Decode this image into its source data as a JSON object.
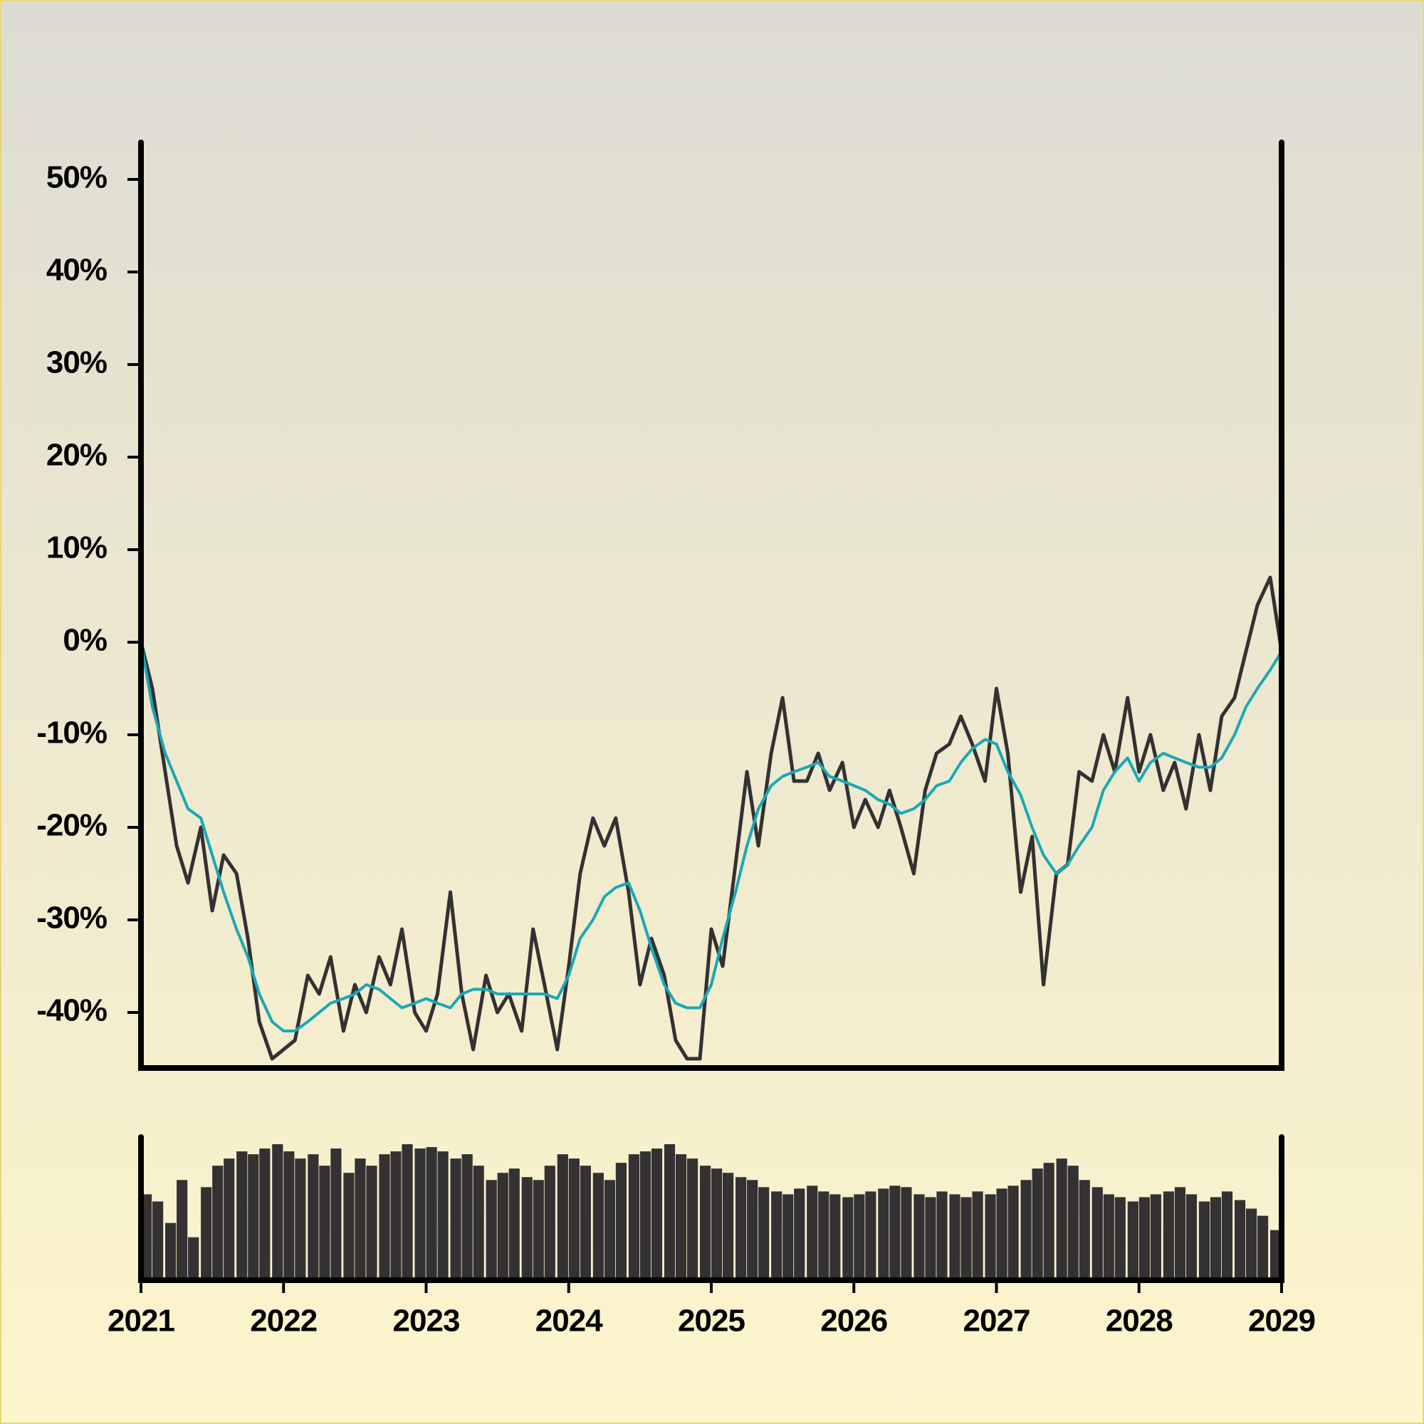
{
  "chart_data": [
    {
      "type": "line",
      "x": [
        2021,
        2021.08,
        2021.17,
        2021.25,
        2021.33,
        2021.42,
        2021.5,
        2021.58,
        2021.67,
        2021.75,
        2021.83,
        2021.92,
        2022,
        2022.08,
        2022.17,
        2022.25,
        2022.33,
        2022.42,
        2022.5,
        2022.58,
        2022.67,
        2022.75,
        2022.83,
        2022.92,
        2023,
        2023.08,
        2023.17,
        2023.25,
        2023.33,
        2023.42,
        2023.5,
        2023.58,
        2023.67,
        2023.75,
        2023.83,
        2023.92,
        2024,
        2024.08,
        2024.17,
        2024.25,
        2024.33,
        2024.42,
        2024.5,
        2024.58,
        2024.67,
        2024.75,
        2024.83,
        2024.92,
        2025,
        2025.08,
        2025.17,
        2025.25,
        2025.33,
        2025.42,
        2025.5,
        2025.58,
        2025.67,
        2025.75,
        2025.83,
        2025.92,
        2026,
        2026.08,
        2026.17,
        2026.25,
        2026.33,
        2026.42,
        2026.5,
        2026.58,
        2026.67,
        2026.75,
        2026.83,
        2026.92,
        2027,
        2027.08,
        2027.17,
        2027.25,
        2027.33,
        2027.42,
        2027.5,
        2027.58,
        2027.67,
        2027.75,
        2027.83,
        2027.92,
        2028,
        2028.08,
        2028.17,
        2028.25,
        2028.33,
        2028.42,
        2028.5,
        2028.58,
        2028.67,
        2028.75,
        2028.83,
        2028.92,
        2029
      ],
      "series": [
        {
          "color": "#333132",
          "values": [
            0,
            -5,
            -14,
            -22,
            -26,
            -20,
            -29,
            -23,
            -25,
            -32,
            -41,
            -45,
            -44,
            -43,
            -36,
            -38,
            -34,
            -42,
            -37,
            -40,
            -34,
            -37,
            -31,
            -40,
            -42,
            -38,
            -27,
            -38,
            -44,
            -36,
            -40,
            -38,
            -42,
            -31,
            -37,
            -44,
            -35,
            -25,
            -19,
            -22,
            -19,
            -27,
            -37,
            -32,
            -36,
            -43,
            -45,
            -45,
            -31,
            -35,
            -24,
            -14,
            -22,
            -12,
            -6,
            -15,
            -15,
            -12,
            -16,
            -13,
            -20,
            -17,
            -20,
            -16,
            -20,
            -25,
            -16,
            -12,
            -11,
            -8,
            -11,
            -15,
            -5,
            -12,
            -27,
            -21,
            -37,
            -25,
            -24,
            -14,
            -15,
            -10,
            -14,
            -6,
            -14,
            -10,
            -16,
            -13,
            -18,
            -10,
            -16,
            -8,
            -6,
            -1,
            4,
            7,
            -1
          ]
        },
        {
          "color": "#1aa8b5",
          "values": [
            0,
            -7,
            -12,
            -15,
            -18,
            -19,
            -23,
            -27,
            -31,
            -34,
            -38,
            -41,
            -42,
            -42,
            -41,
            -40,
            -39,
            -38.5,
            -38,
            -37,
            -37.5,
            -38.5,
            -39.5,
            -39,
            -38.5,
            -39,
            -39.5,
            -38,
            -37.5,
            -37.5,
            -38,
            -38,
            -38,
            -38,
            -38,
            -38.5,
            -36,
            -32,
            -30,
            -27.5,
            -26.5,
            -26,
            -29,
            -33,
            -37,
            -39,
            -39.5,
            -39.5,
            -37,
            -32,
            -27,
            -22,
            -18,
            -15.5,
            -14.5,
            -14,
            -13.5,
            -13,
            -14.5,
            -15,
            -15.5,
            -16,
            -17,
            -17.5,
            -18.5,
            -18,
            -17,
            -15.5,
            -15,
            -13,
            -11.5,
            -10.5,
            -11,
            -14,
            -16.5,
            -20,
            -23,
            -25,
            -24,
            -22,
            -20,
            -16,
            -14,
            -12.5,
            -15,
            -13,
            -12,
            -12.5,
            -13,
            -13.5,
            -13.5,
            -12.5,
            -10,
            -7,
            -5,
            -3,
            -1
          ]
        }
      ],
      "xlim": [
        2021,
        2029
      ],
      "ylim": [
        -46,
        54
      ],
      "yticks": [
        {
          "value": -40,
          "label": "-40%"
        },
        {
          "value": -30,
          "label": "-30%"
        },
        {
          "value": -20,
          "label": "-20%"
        },
        {
          "value": -10,
          "label": "-10%"
        },
        {
          "value": 0,
          "label": "0%"
        },
        {
          "value": 10,
          "label": "10%"
        },
        {
          "value": 20,
          "label": "20%"
        },
        {
          "value": 30,
          "label": "30%"
        },
        {
          "value": 40,
          "label": "40%"
        },
        {
          "value": 50,
          "label": "50%"
        }
      ]
    },
    {
      "type": "bar",
      "x": [
        2021,
        2021.08,
        2021.17,
        2021.25,
        2021.33,
        2021.42,
        2021.5,
        2021.58,
        2021.67,
        2021.75,
        2021.83,
        2021.92,
        2022,
        2022.08,
        2022.17,
        2022.25,
        2022.33,
        2022.42,
        2022.5,
        2022.58,
        2022.67,
        2022.75,
        2022.83,
        2022.92,
        2023,
        2023.08,
        2023.17,
        2023.25,
        2023.33,
        2023.42,
        2023.5,
        2023.58,
        2023.67,
        2023.75,
        2023.83,
        2023.92,
        2024,
        2024.08,
        2024.17,
        2024.25,
        2024.33,
        2024.42,
        2024.5,
        2024.58,
        2024.67,
        2024.75,
        2024.83,
        2024.92,
        2025,
        2025.08,
        2025.17,
        2025.25,
        2025.33,
        2025.42,
        2025.5,
        2025.58,
        2025.67,
        2025.75,
        2025.83,
        2025.92,
        2026,
        2026.08,
        2026.17,
        2026.25,
        2026.33,
        2026.42,
        2026.5,
        2026.58,
        2026.67,
        2026.75,
        2026.83,
        2026.92,
        2027,
        2027.08,
        2027.17,
        2027.25,
        2027.33,
        2027.42,
        2027.5,
        2027.58,
        2027.67,
        2027.75,
        2027.83,
        2027.92,
        2028,
        2028.08,
        2028.17,
        2028.25,
        2028.33,
        2028.42,
        2028.5,
        2028.58,
        2028.67,
        2028.75,
        2028.83,
        2028.92,
        2029
      ],
      "values": [
        60,
        55,
        40,
        70,
        30,
        65,
        80,
        85,
        90,
        88,
        92,
        95,
        90,
        85,
        88,
        80,
        92,
        75,
        85,
        80,
        88,
        90,
        95,
        92,
        93,
        90,
        85,
        88,
        80,
        70,
        75,
        78,
        72,
        70,
        80,
        88,
        85,
        80,
        75,
        70,
        82,
        88,
        90,
        92,
        95,
        88,
        85,
        80,
        78,
        75,
        72,
        70,
        65,
        62,
        60,
        64,
        66,
        62,
        60,
        58,
        60,
        62,
        64,
        66,
        65,
        60,
        58,
        62,
        60,
        58,
        62,
        60,
        64,
        66,
        70,
        78,
        82,
        85,
        80,
        70,
        65,
        60,
        58,
        55,
        58,
        60,
        62,
        65,
        60,
        55,
        58,
        62,
        56,
        50,
        45,
        35,
        30
      ],
      "color": "#333132",
      "ylim": [
        0,
        100
      ],
      "xlim": [
        2021,
        2029
      ],
      "xticks": [
        2021,
        2022,
        2023,
        2024,
        2025,
        2026,
        2027,
        2028,
        2029
      ]
    }
  ]
}
